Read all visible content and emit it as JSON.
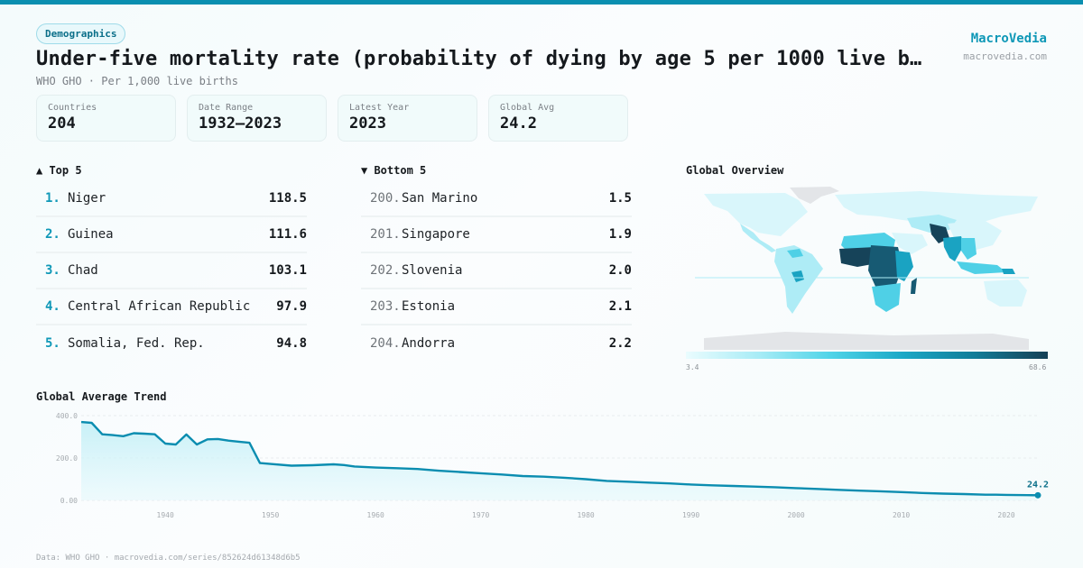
{
  "header": {
    "badge": "Demographics",
    "title": "Under-five mortality rate (probability of dying by age 5 per 1000 live b…",
    "subtitle": "WHO GHO · Per 1,000 live births",
    "brand_name": "MacroVedia",
    "brand_url": "macrovedia.com"
  },
  "stats": [
    {
      "label": "Countries",
      "value": "204"
    },
    {
      "label": "Date Range",
      "value": "1932–2023"
    },
    {
      "label": "Latest Year",
      "value": "2023"
    },
    {
      "label": "Global Avg",
      "value": "24.2"
    }
  ],
  "top5": {
    "title": "▲ Top 5",
    "items": [
      {
        "rank": "1.",
        "name": "Niger",
        "value": "118.5"
      },
      {
        "rank": "2.",
        "name": "Guinea",
        "value": "111.6"
      },
      {
        "rank": "3.",
        "name": "Chad",
        "value": "103.1"
      },
      {
        "rank": "4.",
        "name": "Central African Republic",
        "value": "97.9"
      },
      {
        "rank": "5.",
        "name": "Somalia, Fed. Rep.",
        "value": "94.8"
      }
    ]
  },
  "bottom5": {
    "title": "▼ Bottom 5",
    "items": [
      {
        "rank": "200.",
        "name": "San Marino",
        "value": "1.5"
      },
      {
        "rank": "201.",
        "name": "Singapore",
        "value": "1.9"
      },
      {
        "rank": "202.",
        "name": "Slovenia",
        "value": "2.0"
      },
      {
        "rank": "203.",
        "name": "Estonia",
        "value": "2.1"
      },
      {
        "rank": "204.",
        "name": "Andorra",
        "value": "2.2"
      }
    ]
  },
  "map": {
    "title": "Global Overview",
    "legend_min": "3.4",
    "legend_max": "68.6",
    "colors": {
      "no_data": "#e3e5e8",
      "very_low": "#d9f6fb",
      "low": "#aeecf6",
      "mid": "#4fd0e6",
      "high": "#1aa3c2",
      "very_high": "#175a73",
      "extreme": "#164359"
    }
  },
  "trend": {
    "title": "Global Average Trend",
    "end_label": "24.2"
  },
  "footer": "Data: WHO GHO · macrovedia.com/series/852624d61348d6b5",
  "colors": {
    "accent": "#0a8fb0",
    "line": "#0b8db0",
    "brand": "#0f98b7"
  },
  "chart_data": {
    "type": "area",
    "title": "Global Average Trend",
    "xlabel": "",
    "ylabel": "",
    "x_range": [
      1932,
      2023
    ],
    "ylim": [
      0,
      400
    ],
    "y_ticks": [
      "0.00",
      "200.0",
      "400.0"
    ],
    "x_ticks": [
      "1940",
      "1950",
      "1960",
      "1970",
      "1980",
      "1990",
      "2000",
      "2010",
      "2020"
    ],
    "grid": true,
    "series": [
      {
        "name": "Global Average",
        "x": [
          1932,
          1933,
          1934,
          1935,
          1936,
          1937,
          1938,
          1939,
          1940,
          1941,
          1942,
          1943,
          1944,
          1945,
          1946,
          1947,
          1948,
          1949,
          1950,
          1952,
          1954,
          1956,
          1957,
          1958,
          1960,
          1962,
          1964,
          1966,
          1968,
          1970,
          1972,
          1974,
          1976,
          1978,
          1980,
          1982,
          1984,
          1986,
          1988,
          1990,
          1992,
          1994,
          1996,
          1998,
          2000,
          2002,
          2004,
          2006,
          2008,
          2010,
          2012,
          2014,
          2016,
          2018,
          2019,
          2020,
          2021,
          2022,
          2023
        ],
        "values": [
          370,
          366,
          312,
          308,
          303,
          317,
          315,
          312,
          268,
          264,
          311,
          264,
          288,
          290,
          282,
          277,
          272,
          176,
          172,
          164,
          166,
          170,
          167,
          160,
          155,
          152,
          148,
          140,
          134,
          128,
          122,
          115,
          112,
          107,
          100,
          92,
          88,
          84,
          80,
          75,
          71,
          68,
          65,
          62,
          58,
          54,
          50,
          46,
          43,
          39,
          35,
          32,
          30,
          27,
          27,
          26,
          25,
          24.6,
          24.2
        ]
      }
    ],
    "annotations": [
      {
        "x": 2023,
        "y": 24.2,
        "text": "24.2"
      }
    ]
  }
}
